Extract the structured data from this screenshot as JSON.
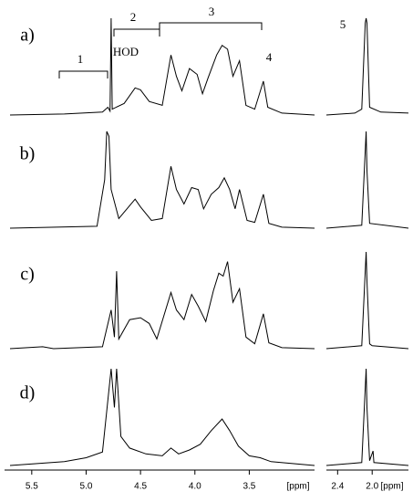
{
  "chart_data": [
    {
      "type": "line",
      "x_label": "[ppm]",
      "color": "#000000",
      "xlim": [
        5.75,
        2.9
      ],
      "ylim": [
        0,
        100
      ],
      "xticks": [
        5.5,
        {
          "value": 5,
          "label": "5.0"
        },
        4.5,
        {
          "value": 4,
          "label": "4.0"
        },
        3.5
      ],
      "annotations": [
        "1",
        "HOD",
        "2",
        "3",
        "4"
      ],
      "series": [
        {
          "name": "a)",
          "x": [
            5.7,
            5.2,
            4.85,
            4.8,
            4.78,
            4.77,
            4.76,
            4.65,
            4.55,
            4.5,
            4.42,
            4.3,
            4.22,
            4.17,
            4.12,
            4.05,
            3.98,
            3.93,
            3.88,
            3.8,
            3.75,
            3.7,
            3.65,
            3.59,
            3.53,
            3.45,
            3.37,
            3.33,
            3.2,
            2.9
          ],
          "values": [
            0,
            1,
            3,
            8,
            4,
            100,
            6,
            12,
            28,
            26,
            14,
            10,
            62,
            40,
            25,
            48,
            42,
            22,
            38,
            62,
            72,
            68,
            40,
            56,
            10,
            6,
            35,
            8,
            2,
            0
          ]
        },
        {
          "name": "b)",
          "x": [
            5.7,
            4.9,
            4.83,
            4.81,
            4.79,
            4.77,
            4.7,
            4.55,
            4.5,
            4.4,
            4.3,
            4.22,
            4.17,
            4.1,
            4.03,
            3.97,
            3.92,
            3.85,
            3.78,
            3.73,
            3.68,
            3.63,
            3.59,
            3.52,
            3.45,
            3.37,
            3.32,
            3.2,
            2.9
          ],
          "values": [
            0,
            2,
            50,
            100,
            95,
            40,
            10,
            30,
            22,
            8,
            10,
            64,
            40,
            25,
            42,
            40,
            20,
            35,
            42,
            52,
            40,
            20,
            40,
            8,
            6,
            35,
            5,
            1,
            0
          ]
        },
        {
          "name": "c)",
          "x": [
            5.7,
            5.4,
            5.3,
            4.85,
            4.77,
            4.74,
            4.72,
            4.7,
            4.6,
            4.5,
            4.42,
            4.35,
            4.22,
            4.17,
            4.1,
            4.03,
            3.97,
            3.9,
            3.83,
            3.78,
            3.74,
            3.7,
            3.65,
            3.59,
            3.53,
            3.45,
            3.37,
            3.32,
            3.2,
            2.9
          ],
          "values": [
            0,
            2,
            0,
            2,
            40,
            12,
            80,
            10,
            30,
            32,
            26,
            10,
            58,
            40,
            30,
            56,
            44,
            28,
            60,
            78,
            75,
            90,
            48,
            62,
            12,
            5,
            36,
            6,
            1,
            0
          ]
        },
        {
          "name": "d)",
          "x": [
            5.7,
            5.2,
            5.0,
            4.85,
            4.77,
            4.74,
            4.72,
            4.68,
            4.6,
            4.45,
            4.3,
            4.22,
            4.15,
            4.05,
            3.95,
            3.85,
            3.75,
            3.68,
            3.6,
            3.5,
            3.4,
            3.3,
            2.9
          ],
          "values": [
            0,
            4,
            8,
            14,
            100,
            60,
            100,
            30,
            18,
            12,
            10,
            18,
            12,
            16,
            22,
            36,
            48,
            36,
            20,
            10,
            8,
            4,
            0
          ]
        }
      ]
    },
    {
      "type": "line",
      "x_label": "[ppm]",
      "color": "#000000",
      "xlim": [
        2.53,
        1.58
      ],
      "ylim": [
        0,
        100
      ],
      "xticks": [
        2.4,
        {
          "value": 2,
          "label": "2.0"
        }
      ],
      "annotations": [
        "5"
      ],
      "series": [
        {
          "x": [
            2.53,
            2.2,
            2.12,
            2.08,
            2.07,
            2.06,
            2.03,
            1.9,
            1.58
          ],
          "values": [
            0,
            2,
            6,
            95,
            100,
            95,
            8,
            3,
            2
          ]
        },
        {
          "x": [
            2.53,
            2.12,
            2.07,
            2.06,
            2.03,
            1.58
          ],
          "values": [
            0,
            3,
            100,
            60,
            5,
            0
          ]
        },
        {
          "x": [
            2.53,
            2.12,
            2.07,
            2.06,
            2.03,
            2.0,
            1.58
          ],
          "values": [
            0,
            3,
            100,
            70,
            5,
            3,
            0
          ]
        },
        {
          "x": [
            2.53,
            2.12,
            2.07,
            2.06,
            2.03,
            1.99,
            1.98,
            1.58
          ],
          "values": [
            0,
            3,
            100,
            60,
            5,
            15,
            3,
            0
          ]
        }
      ]
    }
  ]
}
